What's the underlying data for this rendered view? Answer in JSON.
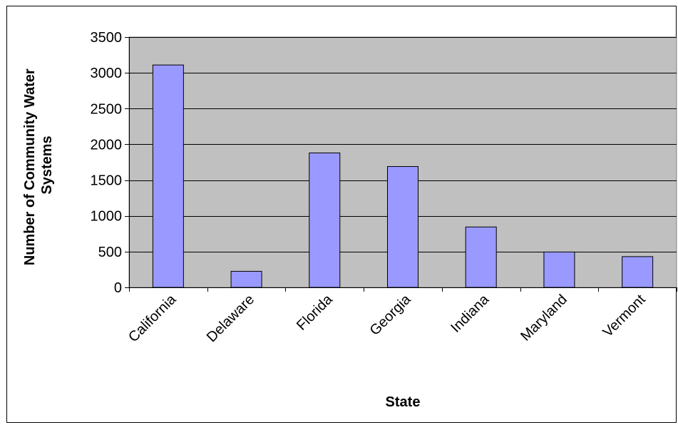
{
  "chart_data": {
    "type": "bar",
    "title": "",
    "xlabel": "State",
    "ylabel_lines": [
      "Number of Community Water",
      "Systems"
    ],
    "categories": [
      "California",
      "Delaware",
      "Florida",
      "Georgia",
      "Indiana",
      "Maryland",
      "Vermont"
    ],
    "values": [
      3110,
      225,
      1880,
      1690,
      845,
      495,
      430
    ],
    "ylim": [
      0,
      3500
    ],
    "yticks": [
      0,
      500,
      1000,
      1500,
      2000,
      2500,
      3000,
      3500
    ],
    "grid": true,
    "legend": "none",
    "colors": {
      "bar_fill": "#9999ff",
      "bar_stroke": "#000000",
      "plot_background": "#c0c0c0",
      "gridline": "#000000"
    }
  }
}
